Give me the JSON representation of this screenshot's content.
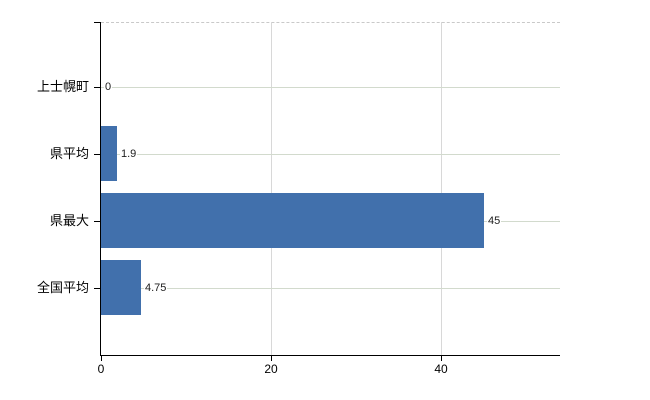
{
  "chart_data": {
    "type": "bar",
    "orientation": "horizontal",
    "title": "",
    "xlabel": "",
    "ylabel": "",
    "categories": [
      "上士幌町",
      "県平均",
      "県最大",
      "全国平均"
    ],
    "values": [
      0,
      1.9,
      45,
      4.75
    ],
    "value_labels": [
      "0",
      "1.9",
      "45",
      "4.75"
    ],
    "xlim": [
      0,
      54
    ],
    "x_ticks": [
      0,
      20,
      40
    ],
    "x_tick_labels": [
      "0",
      "20",
      "40"
    ],
    "legend": "none",
    "grid": {
      "vertical_gridlines_at": [
        20,
        40
      ],
      "category_row_lines": true,
      "dashed_top_border": true
    },
    "colors": {
      "bar": "#4170ac",
      "axis": "#000000",
      "value_gridline": "#d8d8d8",
      "category_gridline": "#d2dacd",
      "top_border": "#c9c9c9",
      "text": "#000000",
      "value_text": "#1c1c1c",
      "background": "#ffffff"
    }
  }
}
